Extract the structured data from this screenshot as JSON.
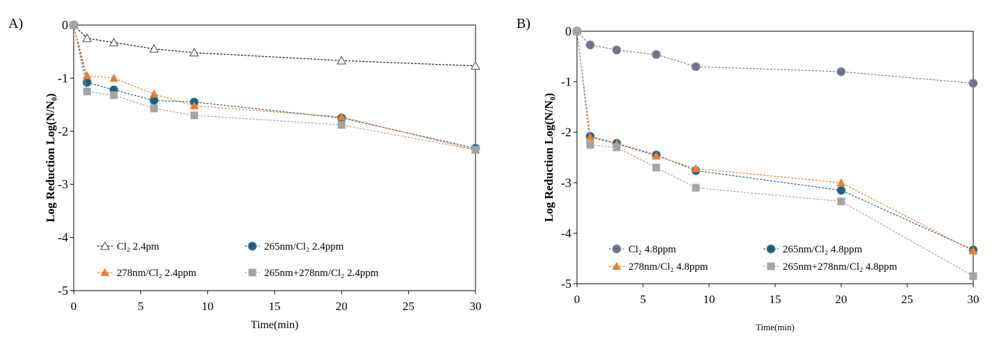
{
  "chart_data": [
    {
      "panel": "A)",
      "type": "line",
      "xlabel": "Time(min)",
      "ylabel": "Log Reduction Log(N/N₀)",
      "xlim": [
        0,
        30
      ],
      "ylim": [
        -5,
        0
      ],
      "xticks": [
        0,
        5,
        10,
        15,
        20,
        25,
        30
      ],
      "yticks": [
        0,
        -1,
        -2,
        -3,
        -4,
        -5
      ],
      "grid": false,
      "legend_position": "bottom-left, two columns",
      "series": [
        {
          "name": "Cl₂ 2.4pm",
          "color": "#222222",
          "marker": "triangle-open",
          "x": [
            0,
            1,
            3,
            6,
            9,
            20,
            30
          ],
          "y": [
            0,
            -0.25,
            -0.33,
            -0.45,
            -0.52,
            -0.67,
            -0.77
          ]
        },
        {
          "name": "265nm/Cl₂ 2.4ppm",
          "color": "#1f5f7a",
          "marker": "circle",
          "x": [
            0,
            1,
            3,
            6,
            9,
            20,
            30
          ],
          "y": [
            0,
            -1.08,
            -1.22,
            -1.42,
            -1.45,
            -1.75,
            -2.32
          ]
        },
        {
          "name": "278nm/Cl₂ 2.4ppm",
          "color": "#ed7d31",
          "marker": "triangle",
          "x": [
            0,
            1,
            3,
            6,
            9,
            20,
            30
          ],
          "y": [
            0,
            -0.95,
            -1.0,
            -1.3,
            -1.52,
            -1.73,
            -2.35
          ]
        },
        {
          "name": "265nm+278nm/Cl₂ 2.4ppm",
          "color": "#a5a5a5",
          "marker": "square",
          "x": [
            0,
            1,
            3,
            6,
            9,
            20,
            30
          ],
          "y": [
            0,
            -1.25,
            -1.32,
            -1.57,
            -1.7,
            -1.88,
            -2.35
          ]
        }
      ]
    },
    {
      "panel": "B)",
      "type": "line",
      "xlabel": "Time(min)",
      "ylabel": "Log Reduction Log(N/N₀)",
      "xlim": [
        0,
        30
      ],
      "ylim": [
        -5,
        0
      ],
      "xticks": [
        0,
        5,
        10,
        15,
        20,
        25,
        30
      ],
      "yticks": [
        0,
        -1,
        -2,
        -3,
        -4,
        -5
      ],
      "grid": false,
      "legend_position": "bottom-left, two columns",
      "series": [
        {
          "name": "Cl₂ 4.8ppm",
          "color": "#7f7f7f",
          "marker": "circle-gray",
          "x": [
            0,
            1,
            3,
            6,
            9,
            20,
            30
          ],
          "y": [
            0,
            -0.27,
            -0.37,
            -0.46,
            -0.7,
            -0.8,
            -1.03
          ]
        },
        {
          "name": "265nm/Cl₂ 4.8ppm",
          "color": "#1f5f7a",
          "marker": "circle",
          "x": [
            0,
            1,
            3,
            6,
            9,
            20,
            30
          ],
          "y": [
            0,
            -2.08,
            -2.22,
            -2.45,
            -2.76,
            -3.15,
            -4.33
          ]
        },
        {
          "name": "278nm/Cl₂ 4.8ppm",
          "color": "#ed7d31",
          "marker": "triangle",
          "x": [
            0,
            1,
            3,
            6,
            9,
            20,
            30
          ],
          "y": [
            0,
            -2.1,
            -2.23,
            -2.47,
            -2.72,
            -3.0,
            -4.35
          ]
        },
        {
          "name": "265nm+278nm/Cl₂ 4.8ppm",
          "color": "#a5a5a5",
          "marker": "square",
          "x": [
            0,
            1,
            3,
            6,
            9,
            20,
            30
          ],
          "y": [
            0,
            -2.25,
            -2.3,
            -2.7,
            -3.1,
            -3.37,
            -4.85
          ]
        }
      ]
    }
  ]
}
